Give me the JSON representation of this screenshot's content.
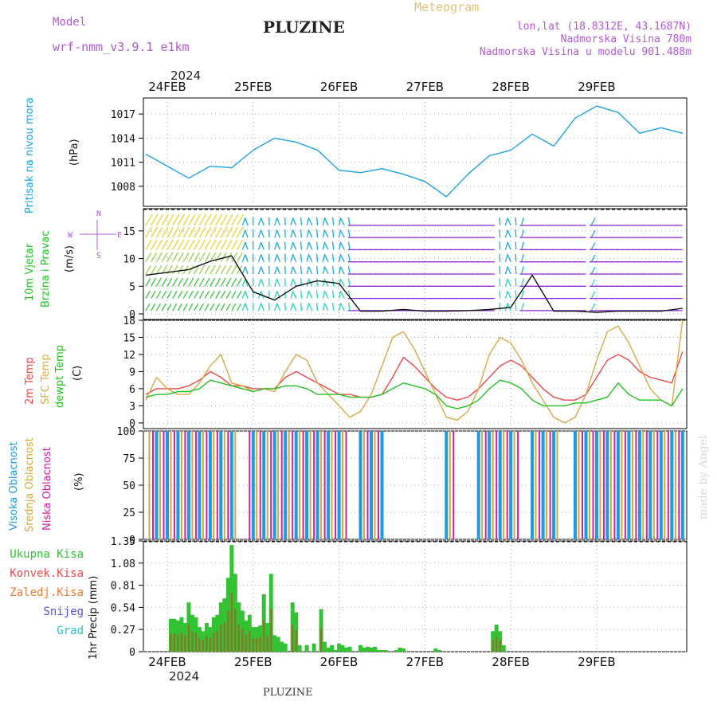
{
  "header": {
    "model_label": "Model",
    "model_name": "wrf-nmm_v3.9.1 e1km",
    "title": "PLUZINE",
    "meteogram": "Meteogram",
    "lonlat": "lon,lat (18.8312E, 43.1687N)",
    "elevation": "Nadmorska Visina 780m",
    "model_elevation": "Nadmorska Visina u modelu 901.488m",
    "footer": "PLUZINE",
    "watermark": "made by Angel",
    "year_top": "2024",
    "year_bottom": "2024"
  },
  "colors": {
    "pressure": "#1ea0e6",
    "temp2m": "#e84a4a",
    "sfc": "#d8a845",
    "dewpt": "#22c022",
    "high_cloud": "#1e9be0",
    "mid_cloud": "#d4a640",
    "low_cloud": "#d01ea0",
    "precip_total": "#33c233",
    "precip_conv": "#e84a4a",
    "axis_label_purple": "#b05ad0"
  },
  "days": [
    "24FEB",
    "25FEB",
    "26FEB",
    "27FEB",
    "28FEB",
    "29FEB"
  ],
  "panel_labels": {
    "pressure": "Pritisak na nivou mora",
    "pressure_unit": "(hPa)",
    "wind_a": "10m Vjetar",
    "wind_b": "Brzina i Pravac",
    "wind_unit": "(m/s)",
    "compass_n": "N",
    "compass_w": "W",
    "compass_e": "E",
    "compass_s": "S",
    "temp_a": "2m Temp",
    "temp_b": "SFC Temp",
    "temp_c": "dewpt Temp",
    "temp_unit": "(C)",
    "cloud_a": "Visoka Oblacnost",
    "cloud_b": "Srednja Oblacnost",
    "cloud_c": "Niska Oblacnost",
    "cloud_unit": "(%)",
    "precip_unit": "1hr Precip (mm)",
    "precip_legend": [
      "Ukupna Kisa",
      "Konvek.Kisa",
      "Zaledj.Kisa",
      "Snijeg",
      "Grad"
    ],
    "precip_legend_colors": [
      "#33c233",
      "#e84a4a",
      "#f07a30",
      "#5050e0",
      "#30c0c0"
    ]
  },
  "chart_data": [
    {
      "type": "line",
      "name": "pressure",
      "ylabel": "Pritisak na nivou mora (hPa)",
      "ylim": [
        1005.5,
        1019
      ],
      "yticks": [
        1008,
        1011,
        1014,
        1017
      ],
      "x_hours": [
        0,
        6,
        12,
        18,
        24,
        30,
        36,
        42,
        48,
        54,
        60,
        66,
        72,
        78,
        84,
        90,
        96,
        102,
        108,
        114,
        120,
        126,
        132,
        138,
        144,
        150
      ],
      "y": [
        1012,
        1010.5,
        1009,
        1010.5,
        1010.3,
        1012.5,
        1014,
        1013.5,
        1012.5,
        1010,
        1009.7,
        1010.2,
        1009.5,
        1008.6,
        1006.7,
        1009.5,
        1011.8,
        1012.5,
        1014.5,
        1013,
        1016.5,
        1018,
        1017.2,
        1014.6,
        1015.3,
        1014.6
      ]
    },
    {
      "type": "line",
      "name": "wind",
      "ylabel": "10m Vjetar Brzina i Pravac (m/s)",
      "ylim": [
        -1,
        19
      ],
      "yticks": [
        0,
        5,
        10,
        15
      ],
      "x_hours": [
        0,
        6,
        12,
        18,
        24,
        30,
        36,
        42,
        48,
        54,
        60,
        66,
        72,
        78,
        84,
        90,
        96,
        102,
        108,
        114,
        120,
        126,
        132,
        138,
        144,
        150
      ],
      "y": [
        7,
        7.5,
        8,
        9.5,
        10.5,
        4,
        2.5,
        5,
        6,
        5.5,
        0.5,
        0.5,
        0.8,
        0.5,
        0.5,
        0.6,
        0.8,
        1.2,
        7,
        0.5,
        0.5,
        0.3,
        0.5,
        0.5,
        0.5,
        1
      ]
    },
    {
      "type": "line",
      "name": "temperature",
      "ylabel": "2m Temp / SFC Temp / dewpt Temp (C)",
      "ylim": [
        -1,
        18
      ],
      "yticks": [
        0,
        3,
        6,
        9,
        12,
        15,
        18
      ],
      "x_hours": [
        0,
        3,
        6,
        9,
        12,
        15,
        18,
        21,
        24,
        27,
        30,
        33,
        36,
        39,
        42,
        45,
        48,
        51,
        54,
        57,
        60,
        63,
        66,
        69,
        72,
        75,
        78,
        81,
        84,
        87,
        90,
        93,
        96,
        99,
        102,
        105,
        108,
        111,
        114,
        117,
        120,
        123,
        126,
        129,
        132,
        135,
        138,
        141,
        144,
        147,
        150
      ],
      "series": [
        {
          "name": "2m Temp",
          "values": [
            5,
            6,
            6,
            6,
            6.5,
            7.5,
            9,
            8,
            6.5,
            6.5,
            6,
            6,
            6,
            8,
            9,
            8,
            7,
            6,
            5,
            5,
            4.5,
            4.5,
            5,
            8,
            11.5,
            10,
            8,
            6,
            4.5,
            4,
            4.5,
            6,
            8,
            10,
            11,
            10,
            8,
            6,
            4.5,
            4,
            4,
            5,
            8,
            11,
            12,
            11,
            9,
            8,
            7.5,
            7,
            12.5
          ]
        },
        {
          "name": "SFC Temp",
          "values": [
            4,
            8,
            6,
            5,
            5,
            7,
            10,
            12,
            7,
            6.5,
            5.5,
            6,
            5.5,
            9,
            12,
            11,
            7,
            5,
            3,
            1,
            2,
            5,
            10,
            15,
            16,
            13,
            9,
            5,
            1,
            0.5,
            2,
            6,
            12,
            15,
            14,
            11,
            7,
            4,
            1,
            0,
            1,
            5,
            11,
            16,
            17,
            14,
            10,
            6,
            4,
            3,
            18
          ]
        },
        {
          "name": "dewpt Temp",
          "values": [
            4.5,
            5,
            5,
            5.5,
            5.5,
            6,
            7.5,
            7,
            6.5,
            6,
            5.5,
            6,
            6,
            6.5,
            6.5,
            6,
            5,
            5,
            5,
            4.5,
            4.5,
            4.5,
            5,
            6,
            7,
            6.5,
            6,
            5,
            3,
            2.5,
            3,
            4,
            6,
            7.5,
            7,
            6,
            4,
            3,
            3,
            3,
            3.5,
            3.5,
            4,
            4.5,
            7,
            5,
            4,
            4,
            4,
            3,
            6
          ]
        }
      ]
    },
    {
      "type": "bar",
      "name": "cloud",
      "ylabel": "Oblacnost (%)",
      "ylim": [
        0,
        100
      ],
      "yticks": [
        0,
        25,
        50,
        75,
        100
      ],
      "segments_hours": [
        [
          1,
          25
        ],
        [
          29,
          56
        ],
        [
          60,
          66
        ],
        [
          84,
          86
        ],
        [
          93,
          104
        ],
        [
          108,
          115
        ],
        [
          120,
          150
        ]
      ],
      "values_percent": 100
    },
    {
      "type": "bar",
      "name": "precipitation",
      "ylabel": "1hr Precip (mm)",
      "ylim": [
        0,
        1.35
      ],
      "yticks": [
        0,
        0.27,
        0.54,
        0.81,
        1.08,
        1.35
      ],
      "x_hours": [
        7,
        8,
        9,
        10,
        11,
        12,
        13,
        14,
        15,
        16,
        17,
        18,
        19,
        20,
        21,
        22,
        23,
        24,
        25,
        26,
        27,
        28,
        29,
        30,
        31,
        32,
        33,
        34,
        35,
        36,
        37,
        38,
        39,
        41,
        42,
        43,
        45,
        47,
        49,
        50,
        51,
        52,
        53,
        54,
        55,
        56,
        57,
        60,
        61,
        62,
        63,
        64,
        65,
        66,
        67,
        70,
        71,
        72,
        81,
        82,
        97,
        98,
        99,
        100
      ],
      "values": [
        0.4,
        0.4,
        0.38,
        0.42,
        0.35,
        0.6,
        0.45,
        0.42,
        0.3,
        0.25,
        0.35,
        0.3,
        0.42,
        0.45,
        0.6,
        0.65,
        0.9,
        1.3,
        0.95,
        0.6,
        0.5,
        0.38,
        0.45,
        0.3,
        0.3,
        0.32,
        0.7,
        0.35,
        0.95,
        0.2,
        0.18,
        0.12,
        0.1,
        0.6,
        0.48,
        0.08,
        0.08,
        0.1,
        0.52,
        0.12,
        0.05,
        0.08,
        0.02,
        0.1,
        0.08,
        0.05,
        0.06,
        0.08,
        0.05,
        0.06,
        0.05,
        0.06,
        0.02,
        0.02,
        0.02,
        0.02,
        0.05,
        0.04,
        0.04,
        0.02,
        0.25,
        0.33,
        0.25,
        0.08
      ]
    }
  ]
}
